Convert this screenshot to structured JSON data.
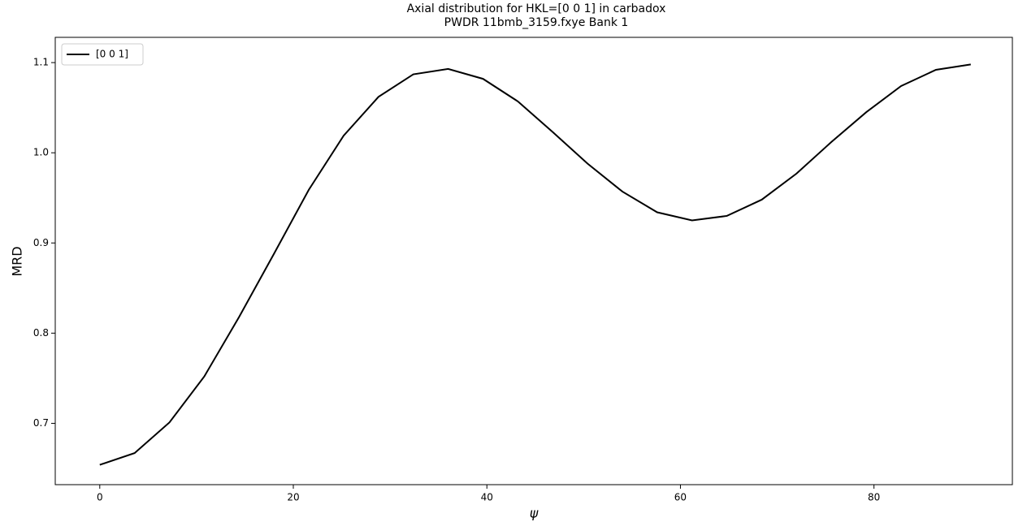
{
  "chart_data": {
    "type": "line",
    "title": "Axial distribution for HKL=[0 0 1] in carbadox",
    "subtitle": "PWDR 11bmb_3159.fxye Bank 1",
    "x_label": "ψ",
    "y_label": "MRD",
    "x": [
      0,
      3.6,
      7.2,
      10.8,
      14.4,
      18,
      21.6,
      25.2,
      28.8,
      32.4,
      36,
      39.6,
      43.2,
      46.8,
      50.4,
      54,
      57.6,
      61.2,
      64.8,
      68.4,
      72,
      75.6,
      79.2,
      82.8,
      86.4,
      90
    ],
    "series": [
      {
        "name": "[0 0 1]",
        "color": "#000000",
        "values": [
          0.654,
          0.667,
          0.701,
          0.752,
          0.818,
          0.888,
          0.959,
          1.019,
          1.062,
          1.087,
          1.093,
          1.082,
          1.057,
          1.023,
          0.988,
          0.957,
          0.934,
          0.925,
          0.93,
          0.948,
          0.977,
          1.012,
          1.045,
          1.074,
          1.092,
          1.098
        ]
      }
    ],
    "xlim": [
      -4.6,
      94.3
    ],
    "ylim": [
      0.632,
      1.128
    ],
    "xticks": [
      0,
      20,
      40,
      60,
      80
    ],
    "yticks": [
      {
        "value": 0.7,
        "label": "0.7"
      },
      {
        "value": 0.8,
        "label": "0.8"
      },
      {
        "value": 0.9,
        "label": "0.9"
      },
      {
        "value": 1.0,
        "label": "1.0"
      },
      {
        "value": 1.1,
        "label": "1.1"
      }
    ],
    "legend": "upper left",
    "grid": false
  }
}
